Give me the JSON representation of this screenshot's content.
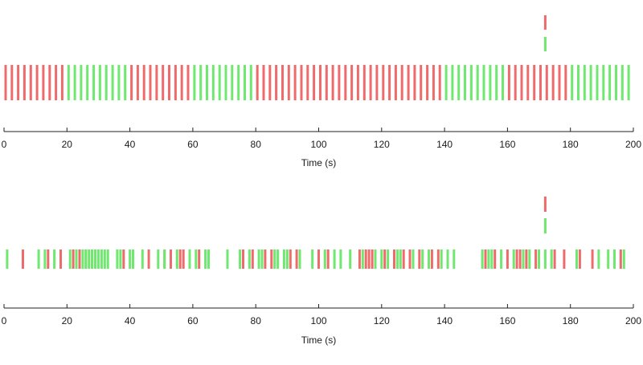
{
  "chart_data": [
    {
      "type": "raster",
      "xlabel": "Time (s)",
      "xlim": [
        0,
        200
      ],
      "xticks": [
        0,
        20,
        40,
        60,
        80,
        100,
        120,
        140,
        160,
        180,
        200
      ],
      "legend_marks": [
        {
          "color": "#ef6b6b",
          "x": 172
        },
        {
          "color": "#6fe86f",
          "x": 172
        }
      ],
      "series": [
        {
          "color": "#ef6b6b",
          "x": [
            0.5,
            2.5,
            4.5,
            6.5,
            8.5,
            10.5,
            12.5,
            14.5,
            16.5,
            18.5,
            40.5,
            42.5,
            44.5,
            46.5,
            48.5,
            50.5,
            52.5,
            54.5,
            56.5,
            58.5,
            80.5,
            82.5,
            84.5,
            86.5,
            88.5,
            90.5,
            92.5,
            94.5,
            96.5,
            98.5,
            100.5,
            102.5,
            104.5,
            106.5,
            108.5,
            110.5,
            112.5,
            114.5,
            116.5,
            118.5,
            120.5,
            122.5,
            124.5,
            126.5,
            128.5,
            130.5,
            132.5,
            134.5,
            136.5,
            138.5,
            160.5,
            162.5,
            164.5,
            166.5,
            168.5,
            170.5,
            172.5,
            174.5,
            176.5,
            178.5
          ]
        },
        {
          "color": "#6fe86f",
          "x": [
            20.5,
            22.5,
            24.5,
            26.5,
            28.5,
            30.5,
            32.5,
            34.5,
            36.5,
            38.5,
            60.5,
            62.5,
            64.5,
            66.5,
            68.5,
            70.5,
            72.5,
            74.5,
            76.5,
            78.5,
            140.5,
            142.5,
            144.5,
            146.5,
            148.5,
            150.5,
            152.5,
            154.5,
            156.5,
            158.5,
            180.5,
            182.5,
            184.5,
            186.5,
            188.5,
            190.5,
            192.5,
            194.5,
            196.5,
            198.5
          ]
        }
      ]
    },
    {
      "type": "raster",
      "xlabel": "Time (s)",
      "xlim": [
        0,
        200
      ],
      "xticks": [
        0,
        20,
        40,
        60,
        80,
        100,
        120,
        140,
        160,
        180,
        200
      ],
      "legend_marks": [
        {
          "color": "#ef6b6b",
          "x": 172
        },
        {
          "color": "#6fe86f",
          "x": 172
        }
      ],
      "series": [
        {
          "color": "#ef6b6b",
          "x": [
            6,
            14,
            18,
            22,
            24,
            26,
            28,
            38,
            46,
            51,
            53,
            56,
            57,
            62,
            76,
            79,
            83,
            85,
            91,
            93,
            100,
            103,
            113,
            115,
            116,
            117,
            121,
            124,
            127,
            129,
            132,
            136,
            138,
            153,
            156,
            160,
            163,
            164,
            166,
            169,
            175,
            178,
            183,
            187,
            196
          ]
        },
        {
          "color": "#6fe86f",
          "x": [
            1,
            11,
            13,
            16,
            21,
            23,
            25,
            26,
            27,
            28,
            29,
            30,
            31,
            32,
            33,
            36,
            37,
            40,
            41,
            44,
            49,
            51,
            55,
            59,
            61,
            64,
            65,
            71,
            75,
            78,
            81,
            82,
            86,
            87,
            89,
            90,
            94,
            98,
            102,
            105,
            107,
            110,
            114,
            118,
            120,
            122,
            125,
            126,
            130,
            133,
            135,
            139,
            141,
            143,
            152,
            154,
            155,
            158,
            162,
            165,
            167,
            170,
            172,
            174,
            182,
            189,
            192,
            194,
            197
          ]
        }
      ]
    }
  ]
}
